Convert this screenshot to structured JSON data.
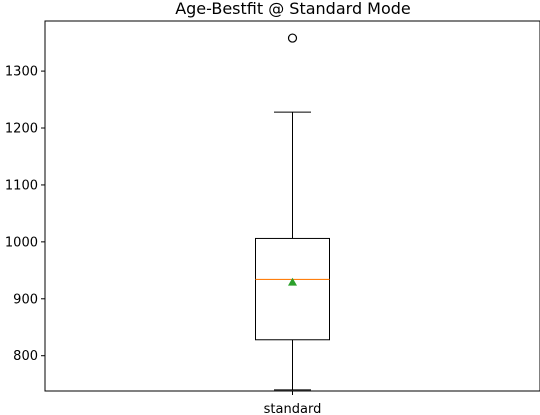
{
  "chart_data": {
    "type": "box",
    "title": "Age-Bestfit @ Standard Mode",
    "xlabel": "",
    "ylabel": "",
    "ylim": [
      738,
      1388
    ],
    "yticks": [
      800,
      900,
      1000,
      1100,
      1200,
      1300
    ],
    "categories": [
      "standard"
    ],
    "series": [
      {
        "category": "standard",
        "whisker_low": 740,
        "q1": 828,
        "median": 934,
        "mean": 929,
        "q3": 1006,
        "whisker_high": 1228,
        "outliers": [
          1358
        ]
      }
    ],
    "grid": false,
    "legend": "none",
    "colors": {
      "box": "#000000",
      "median": "#ff7f0e",
      "mean": "#2ca02c",
      "outlier": "#000000"
    }
  }
}
